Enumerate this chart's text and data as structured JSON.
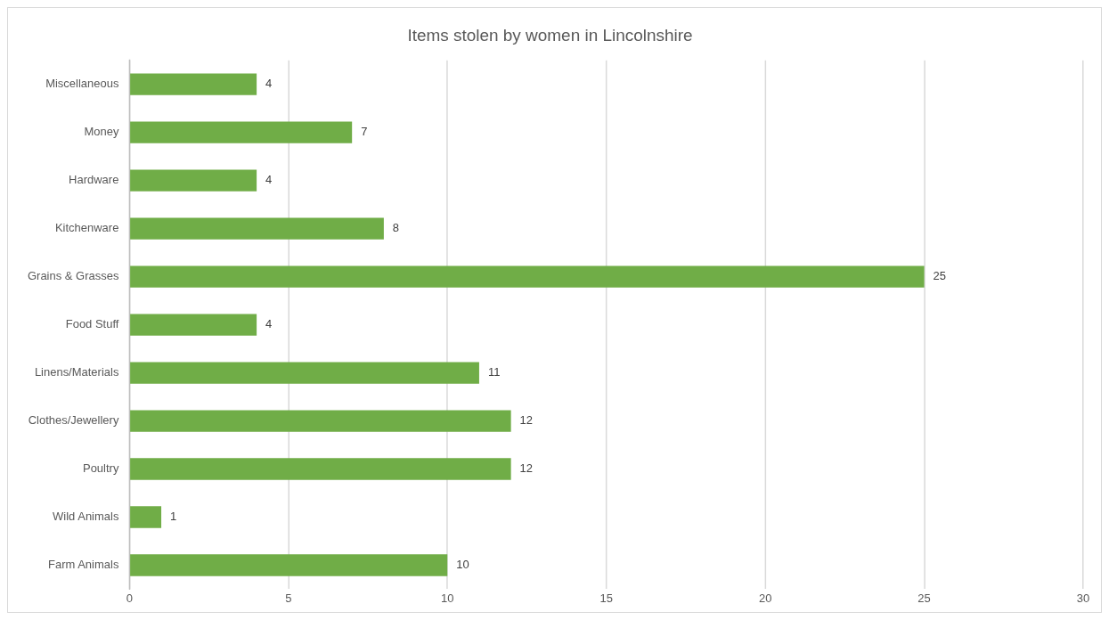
{
  "chart_data": {
    "type": "bar",
    "orientation": "horizontal",
    "title": "Items stolen by women in Lincolnshire",
    "categories": [
      "Miscellaneous",
      "Money",
      "Hardware",
      "Kitchenware",
      "Grains & Grasses",
      "Food Stuff",
      "Linens/Materials",
      "Clothes/Jewellery",
      "Poultry",
      "Wild Animals",
      "Farm Animals"
    ],
    "values": [
      4,
      7,
      4,
      8,
      25,
      4,
      11,
      12,
      12,
      1,
      10
    ],
    "color": "#70ad47",
    "xlim": [
      0,
      30
    ],
    "xticks": [
      0,
      5,
      10,
      15,
      20,
      25,
      30
    ],
    "grid": "x",
    "legend": false,
    "data_labels": true
  }
}
